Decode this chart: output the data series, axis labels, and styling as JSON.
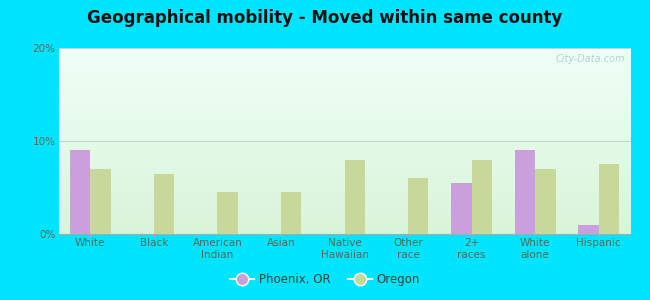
{
  "title": "Geographical mobility - Moved within same county",
  "categories": [
    "White",
    "Black",
    "American\nIndian",
    "Asian",
    "Native\nHawaiian",
    "Other\nrace",
    "2+\nraces",
    "White\nalone",
    "Hispanic"
  ],
  "phoenix_values": [
    9.0,
    0.0,
    0.0,
    0.0,
    0.0,
    0.0,
    5.5,
    9.0,
    1.0
  ],
  "oregon_values": [
    7.0,
    6.5,
    4.5,
    4.5,
    8.0,
    6.0,
    8.0,
    7.0,
    7.5
  ],
  "phoenix_color": "#c9a0dc",
  "oregon_color": "#c8d89a",
  "ylim": [
    0,
    20
  ],
  "yticks": [
    0,
    10,
    20
  ],
  "ytick_labels": [
    "0%",
    "10%",
    "20%"
  ],
  "bar_width": 0.32,
  "bg_outer": "#00e5ff",
  "bg_plot_bottom": "#d6f0d6",
  "bg_plot_top": "#f0fff8",
  "legend_phoenix": "Phoenix, OR",
  "legend_oregon": "Oregon",
  "watermark": "City-Data.com",
  "title_fontsize": 12,
  "axis_label_fontsize": 7.5
}
